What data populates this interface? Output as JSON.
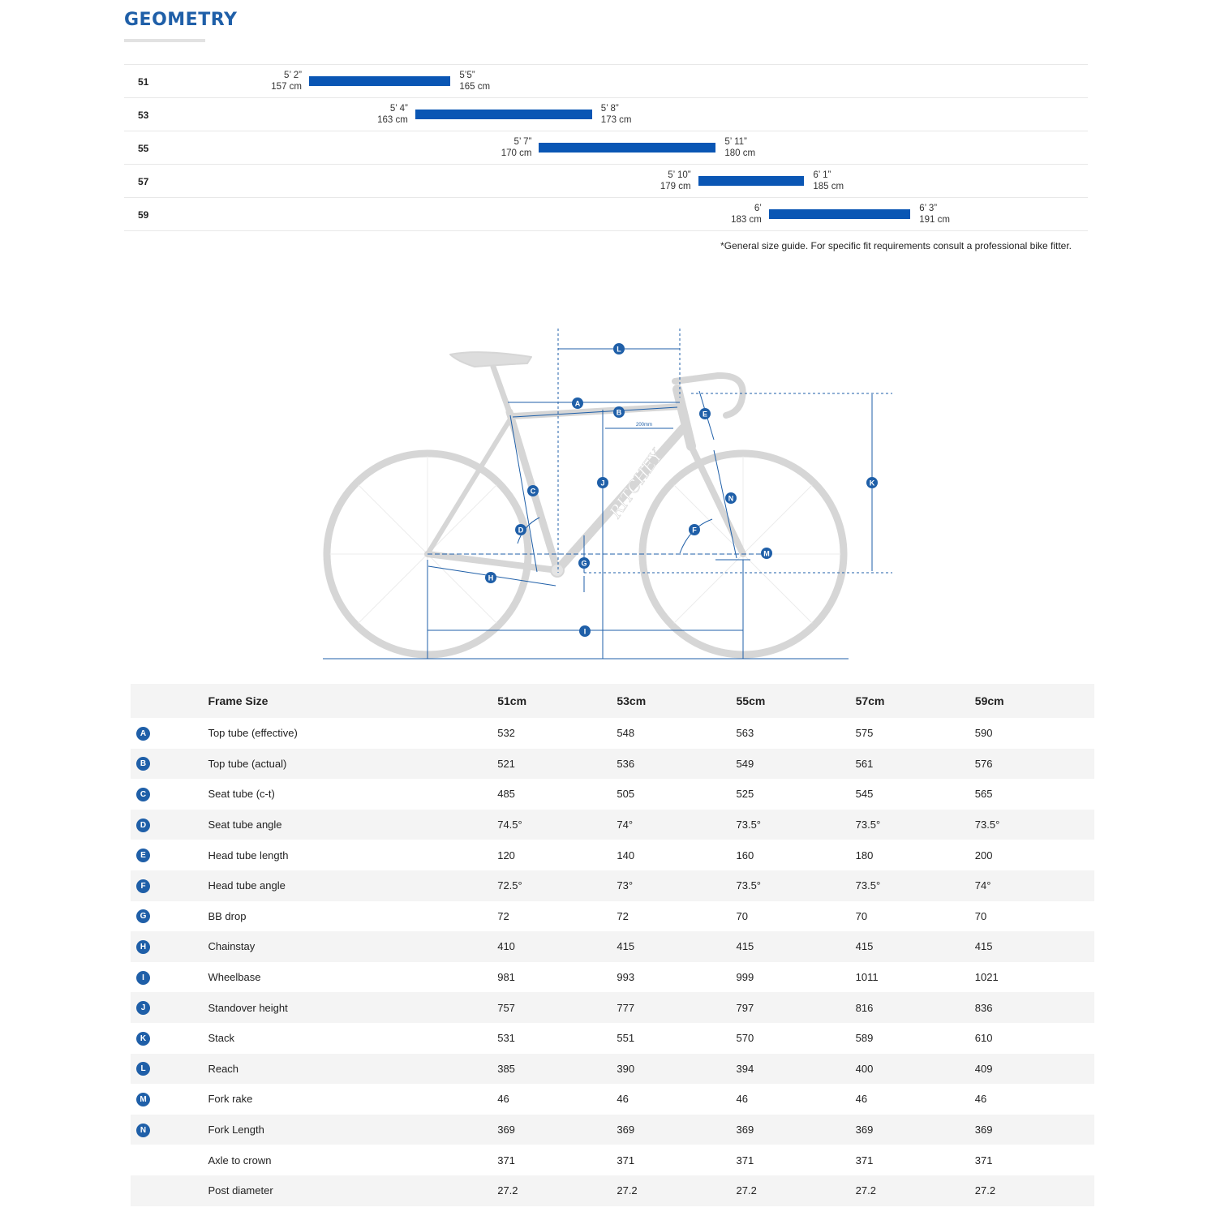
{
  "title": "GEOMETRY",
  "size_guide": {
    "rows": [
      {
        "size": "51",
        "min_label_ft": "5’ 2”",
        "min_label_cm": "157 cm",
        "max_label_ft": "5’5”",
        "max_label_cm": "165 cm",
        "min_cm": 157,
        "max_cm": 165
      },
      {
        "size": "53",
        "min_label_ft": "5’ 4”",
        "min_label_cm": "163 cm",
        "max_label_ft": "5’ 8”",
        "max_label_cm": "173 cm",
        "min_cm": 163,
        "max_cm": 173
      },
      {
        "size": "55",
        "min_label_ft": "5’ 7”",
        "min_label_cm": "170 cm",
        "max_label_ft": "5’ 11”",
        "max_label_cm": "180 cm",
        "min_cm": 170,
        "max_cm": 180
      },
      {
        "size": "57",
        "min_label_ft": "5’ 10”",
        "min_label_cm": "179 cm",
        "max_label_ft": "6’ 1”",
        "max_label_cm": "185 cm",
        "min_cm": 179,
        "max_cm": 185
      },
      {
        "size": "59",
        "min_label_ft": "6’",
        "min_label_cm": "183 cm",
        "max_label_ft": "6’ 3”",
        "max_label_cm": "191 cm",
        "min_cm": 183,
        "max_cm": 191
      }
    ],
    "note": "*General size guide. For specific fit requirements consult a professional bike fitter."
  },
  "diagram": {
    "brand": "RITCHEY",
    "dimension_label": "200mm",
    "markers": [
      "A",
      "B",
      "C",
      "D",
      "E",
      "F",
      "G",
      "H",
      "I",
      "J",
      "K",
      "L",
      "M",
      "N"
    ]
  },
  "table": {
    "header": {
      "label": "Frame Size",
      "sizes": [
        "51cm",
        "53cm",
        "55cm",
        "57cm",
        "59cm"
      ]
    },
    "rows": [
      {
        "badge": "A",
        "label": "Top tube (effective)",
        "values": [
          "532",
          "548",
          "563",
          "575",
          "590"
        ]
      },
      {
        "badge": "B",
        "label": "Top tube (actual)",
        "values": [
          "521",
          "536",
          "549",
          "561",
          "576"
        ]
      },
      {
        "badge": "C",
        "label": "Seat tube (c-t)",
        "values": [
          "485",
          "505",
          "525",
          "545",
          "565"
        ]
      },
      {
        "badge": "D",
        "label": "Seat tube angle",
        "values": [
          "74.5°",
          "74°",
          "73.5°",
          "73.5°",
          "73.5°"
        ]
      },
      {
        "badge": "E",
        "label": "Head tube length",
        "values": [
          "120",
          "140",
          "160",
          "180",
          "200"
        ]
      },
      {
        "badge": "F",
        "label": "Head tube angle",
        "values": [
          "72.5°",
          "73°",
          "73.5°",
          "73.5°",
          "74°"
        ]
      },
      {
        "badge": "G",
        "label": "BB drop",
        "values": [
          "72",
          "72",
          "70",
          "70",
          "70"
        ]
      },
      {
        "badge": "H",
        "label": "Chainstay",
        "values": [
          "410",
          "415",
          "415",
          "415",
          "415"
        ]
      },
      {
        "badge": "I",
        "label": "Wheelbase",
        "values": [
          "981",
          "993",
          "999",
          "1011",
          "1021"
        ]
      },
      {
        "badge": "J",
        "label": "Standover height",
        "values": [
          "757",
          "777",
          "797",
          "816",
          "836"
        ]
      },
      {
        "badge": "K",
        "label": "Stack",
        "values": [
          "531",
          "551",
          "570",
          "589",
          "610"
        ]
      },
      {
        "badge": "L",
        "label": "Reach",
        "values": [
          "385",
          "390",
          "394",
          "400",
          "409"
        ]
      },
      {
        "badge": "M",
        "label": "Fork rake",
        "values": [
          "46",
          "46",
          "46",
          "46",
          "46"
        ]
      },
      {
        "badge": "N",
        "label": "Fork Length",
        "values": [
          "369",
          "369",
          "369",
          "369",
          "369"
        ]
      },
      {
        "badge": "",
        "label": "Axle to crown",
        "values": [
          "371",
          "371",
          "371",
          "371",
          "371"
        ]
      },
      {
        "badge": "",
        "label": "Post diameter",
        "values": [
          "27.2",
          "27.2",
          "27.2",
          "27.2",
          "27.2"
        ]
      }
    ]
  },
  "colors": {
    "accent": "#1f5fa8",
    "bar": "#0a56b4",
    "stripe": "#f4f4f4"
  }
}
